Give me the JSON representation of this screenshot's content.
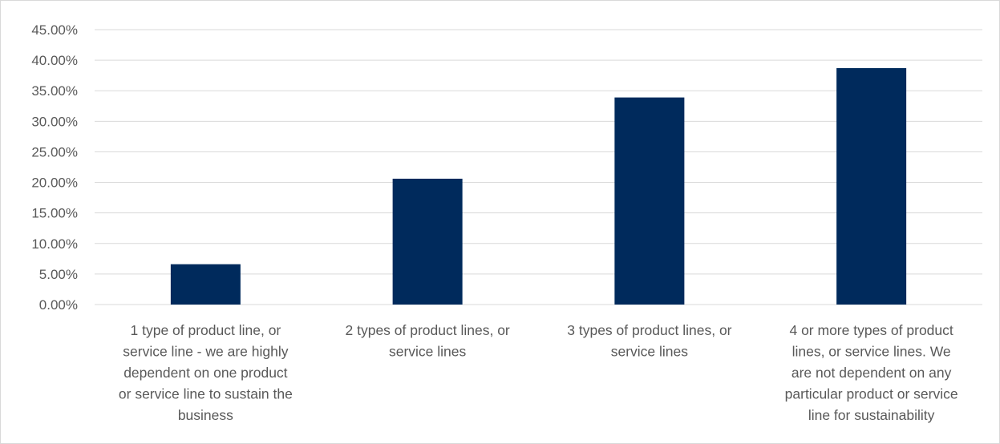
{
  "chart_data": {
    "type": "bar",
    "title": "",
    "xlabel": "",
    "ylabel": "",
    "ylim": [
      0,
      45
    ],
    "yticks": [
      "0.00%",
      "5.00%",
      "10.00%",
      "15.00%",
      "20.00%",
      "25.00%",
      "30.00%",
      "35.00%",
      "40.00%",
      "45.00%"
    ],
    "grid": true,
    "legend": "none",
    "bar_color": "#002A5C",
    "categories": [
      [
        "1 type of product line, or",
        "service line - we are highly",
        "dependent on one product",
        "or service line to sustain the",
        "business"
      ],
      [
        "2 types of product lines, or",
        "service lines"
      ],
      [
        "3 types of product lines, or",
        "service lines"
      ],
      [
        "4 or more types of product",
        "lines, or service lines. We",
        "are not dependent on any",
        "particular product or service",
        "line for sustainability"
      ]
    ],
    "values": [
      6.6,
      20.6,
      33.9,
      38.7
    ]
  }
}
